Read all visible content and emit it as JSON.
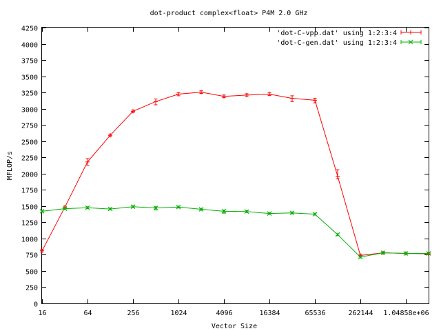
{
  "chart_data": {
    "type": "line",
    "title": "dot-product complex<float> P4M 2.0 GHz",
    "xlabel": "Vector Size",
    "ylabel": "MFLOP/s",
    "x_scale": "log2",
    "xlim": [
      16,
      2097152
    ],
    "ylim": [
      0,
      4250
    ],
    "x_ticks": [
      {
        "value": 16,
        "label": "16"
      },
      {
        "value": 64,
        "label": "64"
      },
      {
        "value": 256,
        "label": "256"
      },
      {
        "value": 1024,
        "label": "1024"
      },
      {
        "value": 4096,
        "label": "4096"
      },
      {
        "value": 16384,
        "label": "16384"
      },
      {
        "value": 65536,
        "label": "65536"
      },
      {
        "value": 262144,
        "label": "262144"
      },
      {
        "value": 1048576,
        "label": "1.04858e+06"
      }
    ],
    "y_ticks": [
      {
        "value": 0,
        "label": "0"
      },
      {
        "value": 250,
        "label": "250"
      },
      {
        "value": 500,
        "label": "500"
      },
      {
        "value": 750,
        "label": "750"
      },
      {
        "value": 1000,
        "label": "1000"
      },
      {
        "value": 1250,
        "label": "1250"
      },
      {
        "value": 1500,
        "label": "1500"
      },
      {
        "value": 1750,
        "label": "1750"
      },
      {
        "value": 2000,
        "label": "2000"
      },
      {
        "value": 2250,
        "label": "2250"
      },
      {
        "value": 2500,
        "label": "2500"
      },
      {
        "value": 2750,
        "label": "2750"
      },
      {
        "value": 3000,
        "label": "3000"
      },
      {
        "value": 3250,
        "label": "3250"
      },
      {
        "value": 3500,
        "label": "3500"
      },
      {
        "value": 3750,
        "label": "3750"
      },
      {
        "value": 4000,
        "label": "4000"
      },
      {
        "value": 4250,
        "label": "4250"
      }
    ],
    "grid": false,
    "legend_position": "top-right",
    "series": [
      {
        "name": "'dot-C-vpp.dat' using 1:2:3:4",
        "color": "#ff0000",
        "marker": "plus",
        "points": [
          {
            "x": 16,
            "y": 810,
            "low": 790,
            "high": 830
          },
          {
            "x": 32,
            "y": 1480,
            "low": 1460,
            "high": 1500
          },
          {
            "x": 64,
            "y": 2180,
            "low": 2130,
            "high": 2230
          },
          {
            "x": 128,
            "y": 2590,
            "low": 2570,
            "high": 2610
          },
          {
            "x": 256,
            "y": 2960,
            "low": 2940,
            "high": 2980
          },
          {
            "x": 512,
            "y": 3110,
            "low": 3060,
            "high": 3150
          },
          {
            "x": 1024,
            "y": 3225,
            "low": 3200,
            "high": 3245
          },
          {
            "x": 2048,
            "y": 3255,
            "low": 3235,
            "high": 3275
          },
          {
            "x": 4096,
            "y": 3190,
            "low": 3170,
            "high": 3210
          },
          {
            "x": 8192,
            "y": 3210,
            "low": 3190,
            "high": 3230
          },
          {
            "x": 16384,
            "y": 3225,
            "low": 3205,
            "high": 3245
          },
          {
            "x": 32768,
            "y": 3160,
            "low": 3110,
            "high": 3200
          },
          {
            "x": 65536,
            "y": 3130,
            "low": 3090,
            "high": 3160
          },
          {
            "x": 131072,
            "y": 1960,
            "low": 1920,
            "high": 2060
          },
          {
            "x": 262144,
            "y": 740,
            "low": 720,
            "high": 760
          },
          {
            "x": 524288,
            "y": 780,
            "low": 765,
            "high": 795
          },
          {
            "x": 1048576,
            "y": 770,
            "low": 755,
            "high": 785
          },
          {
            "x": 2097152,
            "y": 765,
            "low": 750,
            "high": 780
          }
        ]
      },
      {
        "name": "'dot-C-gen.dat' using 1:2:3:4",
        "color": "#00b000",
        "marker": "cross",
        "points": [
          {
            "x": 16,
            "y": 1420,
            "low": 1405,
            "high": 1435
          },
          {
            "x": 32,
            "y": 1460,
            "low": 1445,
            "high": 1475
          },
          {
            "x": 64,
            "y": 1475,
            "low": 1460,
            "high": 1490
          },
          {
            "x": 128,
            "y": 1455,
            "low": 1440,
            "high": 1470
          },
          {
            "x": 256,
            "y": 1490,
            "low": 1475,
            "high": 1505
          },
          {
            "x": 512,
            "y": 1470,
            "low": 1440,
            "high": 1490
          },
          {
            "x": 1024,
            "y": 1485,
            "low": 1470,
            "high": 1500
          },
          {
            "x": 2048,
            "y": 1450,
            "low": 1435,
            "high": 1465
          },
          {
            "x": 4096,
            "y": 1420,
            "low": 1390,
            "high": 1440
          },
          {
            "x": 8192,
            "y": 1415,
            "low": 1400,
            "high": 1430
          },
          {
            "x": 16384,
            "y": 1385,
            "low": 1370,
            "high": 1400
          },
          {
            "x": 32768,
            "y": 1395,
            "low": 1380,
            "high": 1410
          },
          {
            "x": 65536,
            "y": 1375,
            "low": 1360,
            "high": 1390
          },
          {
            "x": 131072,
            "y": 1060,
            "low": 1045,
            "high": 1075
          },
          {
            "x": 262144,
            "y": 715,
            "low": 700,
            "high": 730
          },
          {
            "x": 524288,
            "y": 780,
            "low": 765,
            "high": 795
          },
          {
            "x": 1048576,
            "y": 770,
            "low": 755,
            "high": 785
          },
          {
            "x": 2097152,
            "y": 770,
            "low": 755,
            "high": 785
          }
        ]
      }
    ]
  }
}
